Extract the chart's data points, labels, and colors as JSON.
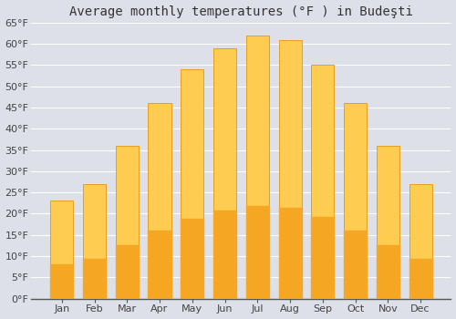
{
  "title": "Average monthly temperatures (°F ) in Budeşti",
  "months": [
    "Jan",
    "Feb",
    "Mar",
    "Apr",
    "May",
    "Jun",
    "Jul",
    "Aug",
    "Sep",
    "Oct",
    "Nov",
    "Dec"
  ],
  "values": [
    23,
    27,
    36,
    46,
    54,
    59,
    62,
    61,
    55,
    46,
    36,
    27
  ],
  "bar_color_top": "#FDCC50",
  "bar_color_bottom": "#F5A623",
  "bar_edge_color": "#E8960A",
  "background_color": "#dde0e8",
  "plot_bg_color": "#dde0e8",
  "ylim": [
    0,
    65
  ],
  "yticks": [
    0,
    5,
    10,
    15,
    20,
    25,
    30,
    35,
    40,
    45,
    50,
    55,
    60,
    65
  ],
  "grid_color": "#ffffff",
  "title_fontsize": 10,
  "tick_fontsize": 8,
  "title_color": "#333333",
  "tick_color": "#444444",
  "spine_color": "#555555"
}
